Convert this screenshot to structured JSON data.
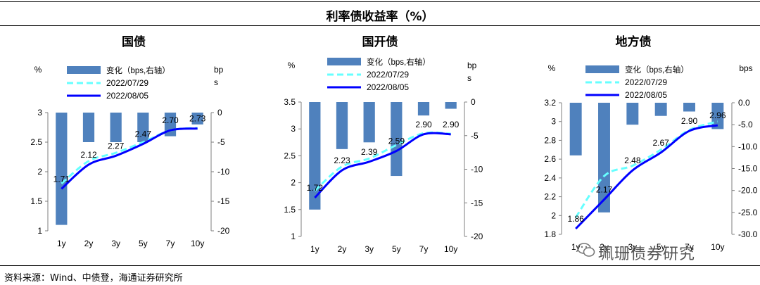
{
  "header": {
    "title": "利率债收益率（%）"
  },
  "footer": {
    "source": "资料来源：Wind、中债登，海通证券研究所",
    "watermark": "珮珊债券研究"
  },
  "colors": {
    "bar": "#4f81bd",
    "line_prev": "#66ffff",
    "line_cur": "#0000ff"
  },
  "chart_data": [
    {
      "type": "bar+line",
      "title": "国债",
      "left_unit": "%",
      "right_unit": "bps",
      "categories": [
        "1y",
        "2y",
        "3y",
        "5y",
        "7y",
        "10y"
      ],
      "ylim_left": [
        1,
        3
      ],
      "yticks_left": [
        "1",
        "1.5",
        "2",
        "2.5",
        "3"
      ],
      "ylim_right": [
        -20,
        0
      ],
      "yticks_right": [
        "-20",
        "-15",
        "-10",
        "-5",
        "0"
      ],
      "legend": [
        "变化（bps,右轴）",
        "2022/07/29",
        "2022/08/05"
      ],
      "series": [
        {
          "name": "变化（bps,右轴）",
          "axis": "right",
          "values": [
            -19,
            -5,
            -5,
            -5,
            -4,
            -2
          ]
        },
        {
          "name": "2022/07/29",
          "axis": "left",
          "values": [
            1.8,
            2.18,
            2.32,
            2.5,
            2.7,
            2.74
          ]
        },
        {
          "name": "2022/08/05",
          "axis": "left",
          "values": [
            1.71,
            2.12,
            2.27,
            2.47,
            2.7,
            2.73
          ]
        }
      ],
      "labels": [
        "1.71",
        "2.12",
        "2.27",
        "2.47",
        "2.70",
        "2.73"
      ]
    },
    {
      "type": "bar+line",
      "title": "国开债",
      "left_unit": "%",
      "right_unit": "bps",
      "categories": [
        "1y",
        "2y",
        "3y",
        "5y",
        "7y",
        "10y"
      ],
      "ylim_left": [
        1,
        3.5
      ],
      "yticks_left": [
        "1",
        "1.5",
        "2",
        "2.5",
        "3",
        "3.5"
      ],
      "ylim_right": [
        -20,
        0
      ],
      "yticks_right": [
        "-20",
        "-15",
        "-10",
        "-5",
        "0"
      ],
      "legend": [
        "变化（bps,右轴）",
        "2022/07/29",
        "2022/08/05"
      ],
      "series": [
        {
          "name": "变化（bps,右轴）",
          "axis": "right",
          "values": [
            -16,
            -7,
            -6,
            -11,
            -2,
            -1
          ]
        },
        {
          "name": "2022/07/29",
          "axis": "left",
          "values": [
            1.85,
            2.3,
            2.45,
            2.7,
            2.92,
            2.91
          ]
        },
        {
          "name": "2022/08/05",
          "axis": "left",
          "values": [
            1.72,
            2.23,
            2.39,
            2.59,
            2.9,
            2.9
          ]
        }
      ],
      "labels": [
        "1.72",
        "2.23",
        "2.39",
        "2.59",
        "2.90",
        "2.90"
      ]
    },
    {
      "type": "bar+line",
      "title": "地方债",
      "left_unit": "%",
      "right_unit": "bps",
      "categories": [
        "1y",
        "2y",
        "3y",
        "5y",
        "7y",
        "10y"
      ],
      "ylim_left": [
        1.8,
        3.2
      ],
      "yticks_left": [
        "1.8",
        "2",
        "2.2",
        "2.4",
        "2.6",
        "2.8",
        "3",
        "3.2"
      ],
      "ylim_right": [
        -30,
        0
      ],
      "yticks_right": [
        "-30.0",
        "-25.0",
        "-20.0",
        "-15.0",
        "-10.0",
        "-5.0",
        "0.0"
      ],
      "legend": [
        "变化（bps,右轴）",
        "2022/07/29",
        "2022/08/05"
      ],
      "series": [
        {
          "name": "变化（bps,右轴）",
          "axis": "right",
          "values": [
            -12,
            -25,
            -5,
            -3,
            -2,
            -6
          ]
        },
        {
          "name": "2022/07/29",
          "axis": "left",
          "values": [
            1.98,
            2.42,
            2.53,
            2.7,
            2.91,
            3.0
          ]
        },
        {
          "name": "2022/08/05",
          "axis": "left",
          "values": [
            1.86,
            2.17,
            2.48,
            2.67,
            2.9,
            2.96
          ]
        }
      ],
      "labels": [
        "1.86",
        "2.17",
        "2.48",
        "2.67",
        "2.90",
        "2.96"
      ]
    }
  ]
}
